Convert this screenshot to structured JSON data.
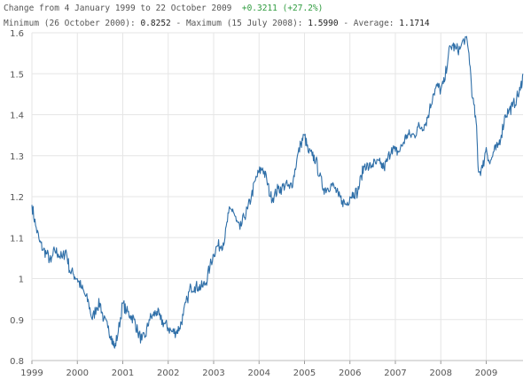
{
  "header": {
    "change_prefix": "Change from 4 January 1999 to 22 October 2009",
    "change_value": "+0.3211 (+27.2%)",
    "min_label": "Minimum (26 October 2000):",
    "min_value": "0.8252",
    "max_label": "- Maximum (15 July 2008):",
    "max_value": "1.5990",
    "avg_label": "- Average:",
    "avg_value": "1.1714"
  },
  "colors": {
    "line": "#2f6fa8",
    "grid": "#e6e6e6",
    "positive": "#2e9b3e"
  },
  "chart_data": {
    "type": "line",
    "title": "",
    "xlabel": "",
    "ylabel": "",
    "xlim": [
      1999.0,
      2009.81
    ],
    "ylim": [
      0.8,
      1.6
    ],
    "x_ticks": [
      "1999",
      "2000",
      "2001",
      "2002",
      "2003",
      "2004",
      "2005",
      "2006",
      "2007",
      "2008",
      "2009"
    ],
    "y_ticks": [
      "0.8",
      "0.9",
      "1",
      "1.1",
      "1.2",
      "1.3",
      "1.4",
      "1.5",
      "1.6"
    ],
    "grid": true,
    "series": [
      {
        "x": [
          1999.0,
          1999.08,
          1999.17,
          1999.25,
          1999.33,
          1999.42,
          1999.5,
          1999.58,
          1999.67,
          1999.75,
          1999.83,
          1999.92,
          2000.0,
          2000.08,
          2000.17,
          2000.25,
          2000.33,
          2000.42,
          2000.5,
          2000.58,
          2000.67,
          2000.75,
          2000.82,
          2000.9,
          2001.0,
          2001.08,
          2001.17,
          2001.25,
          2001.33,
          2001.42,
          2001.5,
          2001.58,
          2001.67,
          2001.75,
          2001.83,
          2001.92,
          2002.0,
          2002.08,
          2002.17,
          2002.25,
          2002.33,
          2002.42,
          2002.5,
          2002.58,
          2002.67,
          2002.75,
          2002.83,
          2002.92,
          2003.0,
          2003.08,
          2003.17,
          2003.25,
          2003.33,
          2003.42,
          2003.5,
          2003.58,
          2003.67,
          2003.75,
          2003.83,
          2003.92,
          2004.0,
          2004.08,
          2004.17,
          2004.25,
          2004.33,
          2004.42,
          2004.5,
          2004.58,
          2004.67,
          2004.75,
          2004.83,
          2004.92,
          2005.0,
          2005.08,
          2005.17,
          2005.25,
          2005.33,
          2005.42,
          2005.5,
          2005.58,
          2005.67,
          2005.75,
          2005.83,
          2005.92,
          2006.0,
          2006.08,
          2006.17,
          2006.25,
          2006.33,
          2006.42,
          2006.5,
          2006.58,
          2006.67,
          2006.75,
          2006.83,
          2006.92,
          2007.0,
          2007.08,
          2007.17,
          2007.25,
          2007.33,
          2007.42,
          2007.5,
          2007.58,
          2007.67,
          2007.75,
          2007.83,
          2007.92,
          2008.0,
          2008.08,
          2008.17,
          2008.25,
          2008.33,
          2008.42,
          2008.54,
          2008.62,
          2008.7,
          2008.78,
          2008.83,
          2008.92,
          2009.0,
          2009.08,
          2009.17,
          2009.25,
          2009.33,
          2009.42,
          2009.5,
          2009.58,
          2009.67,
          2009.75,
          2009.81
        ],
        "y": [
          1.18,
          1.13,
          1.09,
          1.07,
          1.06,
          1.04,
          1.07,
          1.06,
          1.05,
          1.07,
          1.02,
          1.01,
          1.0,
          0.98,
          0.96,
          0.94,
          0.9,
          0.93,
          0.94,
          0.9,
          0.88,
          0.86,
          0.83,
          0.87,
          0.94,
          0.92,
          0.91,
          0.9,
          0.87,
          0.85,
          0.86,
          0.9,
          0.91,
          0.92,
          0.9,
          0.89,
          0.88,
          0.87,
          0.87,
          0.88,
          0.91,
          0.95,
          0.98,
          0.98,
          0.98,
          0.98,
          0.99,
          1.03,
          1.06,
          1.08,
          1.08,
          1.1,
          1.16,
          1.17,
          1.14,
          1.12,
          1.15,
          1.17,
          1.2,
          1.24,
          1.26,
          1.27,
          1.24,
          1.2,
          1.2,
          1.22,
          1.22,
          1.23,
          1.22,
          1.24,
          1.29,
          1.33,
          1.35,
          1.31,
          1.3,
          1.29,
          1.25,
          1.22,
          1.22,
          1.23,
          1.22,
          1.2,
          1.19,
          1.18,
          1.2,
          1.21,
          1.21,
          1.25,
          1.28,
          1.27,
          1.28,
          1.28,
          1.28,
          1.27,
          1.29,
          1.32,
          1.31,
          1.31,
          1.33,
          1.35,
          1.35,
          1.35,
          1.37,
          1.37,
          1.38,
          1.41,
          1.45,
          1.47,
          1.46,
          1.48,
          1.55,
          1.57,
          1.56,
          1.56,
          1.59,
          1.55,
          1.44,
          1.38,
          1.26,
          1.27,
          1.32,
          1.28,
          1.31,
          1.32,
          1.35,
          1.4,
          1.41,
          1.42,
          1.44,
          1.46,
          1.5
        ]
      }
    ]
  }
}
